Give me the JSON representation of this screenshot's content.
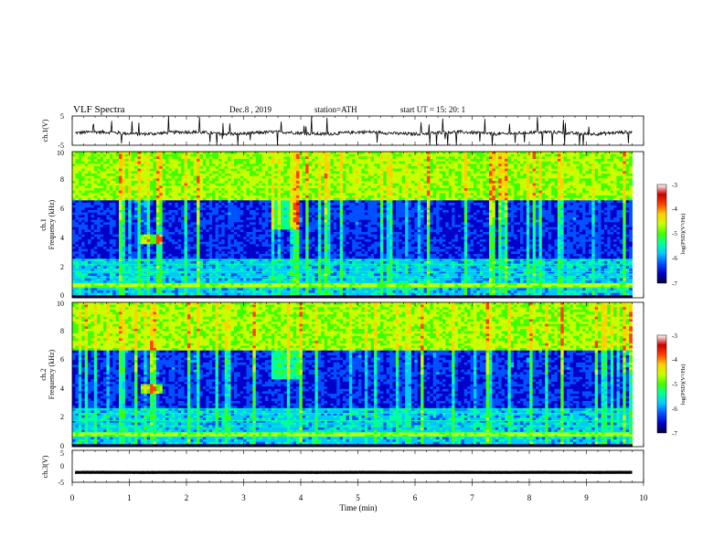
{
  "header": {
    "title": "VLF Spectra",
    "date": "Dec.8 , 2019",
    "station": "station=ATH",
    "start": "start UT = 15: 20: 1"
  },
  "chart_data": [
    {
      "type": "line",
      "id": "ch1-waveform",
      "ylabel": "ch.1(V)",
      "ylim": [
        -5,
        5
      ],
      "y_ticks": [
        "5",
        "-5"
      ],
      "xlim": [
        0,
        10
      ],
      "baseline": -0.8
    },
    {
      "type": "heatmap",
      "id": "ch1-spectrogram",
      "ylabel_channel": "ch.1",
      "ylabel": "Frequency (kHz)",
      "ylim": [
        0,
        10
      ],
      "y_ticks": [
        "0",
        "2",
        "4",
        "6",
        "8",
        "10"
      ],
      "xlim": [
        0,
        10
      ],
      "colorbar": {
        "label": "log(PSD)(V²/Hz)",
        "range": [
          -7,
          -3
        ],
        "ticks": [
          "-3",
          "-4",
          "-5",
          "-6",
          "-7"
        ],
        "colors": [
          "#000040",
          "#0000c8",
          "#0050ff",
          "#00c8ff",
          "#00ffa0",
          "#40ff00",
          "#c8ff00",
          "#ffd000",
          "#ff4000",
          "#c80000",
          "#ffffff"
        ]
      }
    },
    {
      "type": "heatmap",
      "id": "ch2-spectrogram",
      "ylabel_channel": "ch.2",
      "ylabel": "Frequency (kHz)",
      "ylim": [
        0,
        10
      ],
      "y_ticks": [
        "0",
        "2",
        "4",
        "6",
        "8",
        "10"
      ],
      "xlim": [
        0,
        10
      ],
      "colorbar": {
        "label": "log(PSD)(V²/Hz)",
        "range": [
          -7,
          -3
        ],
        "ticks": [
          "-3",
          "-4",
          "-5",
          "-6",
          "-7"
        ],
        "colors": [
          "#000040",
          "#0000c8",
          "#0050ff",
          "#00c8ff",
          "#00ffa0",
          "#40ff00",
          "#c8ff00",
          "#ffd000",
          "#ff4000",
          "#c80000",
          "#ffffff"
        ]
      }
    },
    {
      "type": "line",
      "id": "ch3-waveform",
      "ylabel": "ch.3(V)",
      "ylim": [
        -5,
        5
      ],
      "y_ticks": [
        "5",
        "0",
        "-5"
      ],
      "xlim": [
        0,
        10
      ],
      "baseline": -1.9
    }
  ],
  "x_axis": {
    "label": "Time (min)",
    "ticks": [
      "0",
      "1",
      "2",
      "3",
      "4",
      "5",
      "6",
      "7",
      "8",
      "9",
      "10"
    ]
  }
}
